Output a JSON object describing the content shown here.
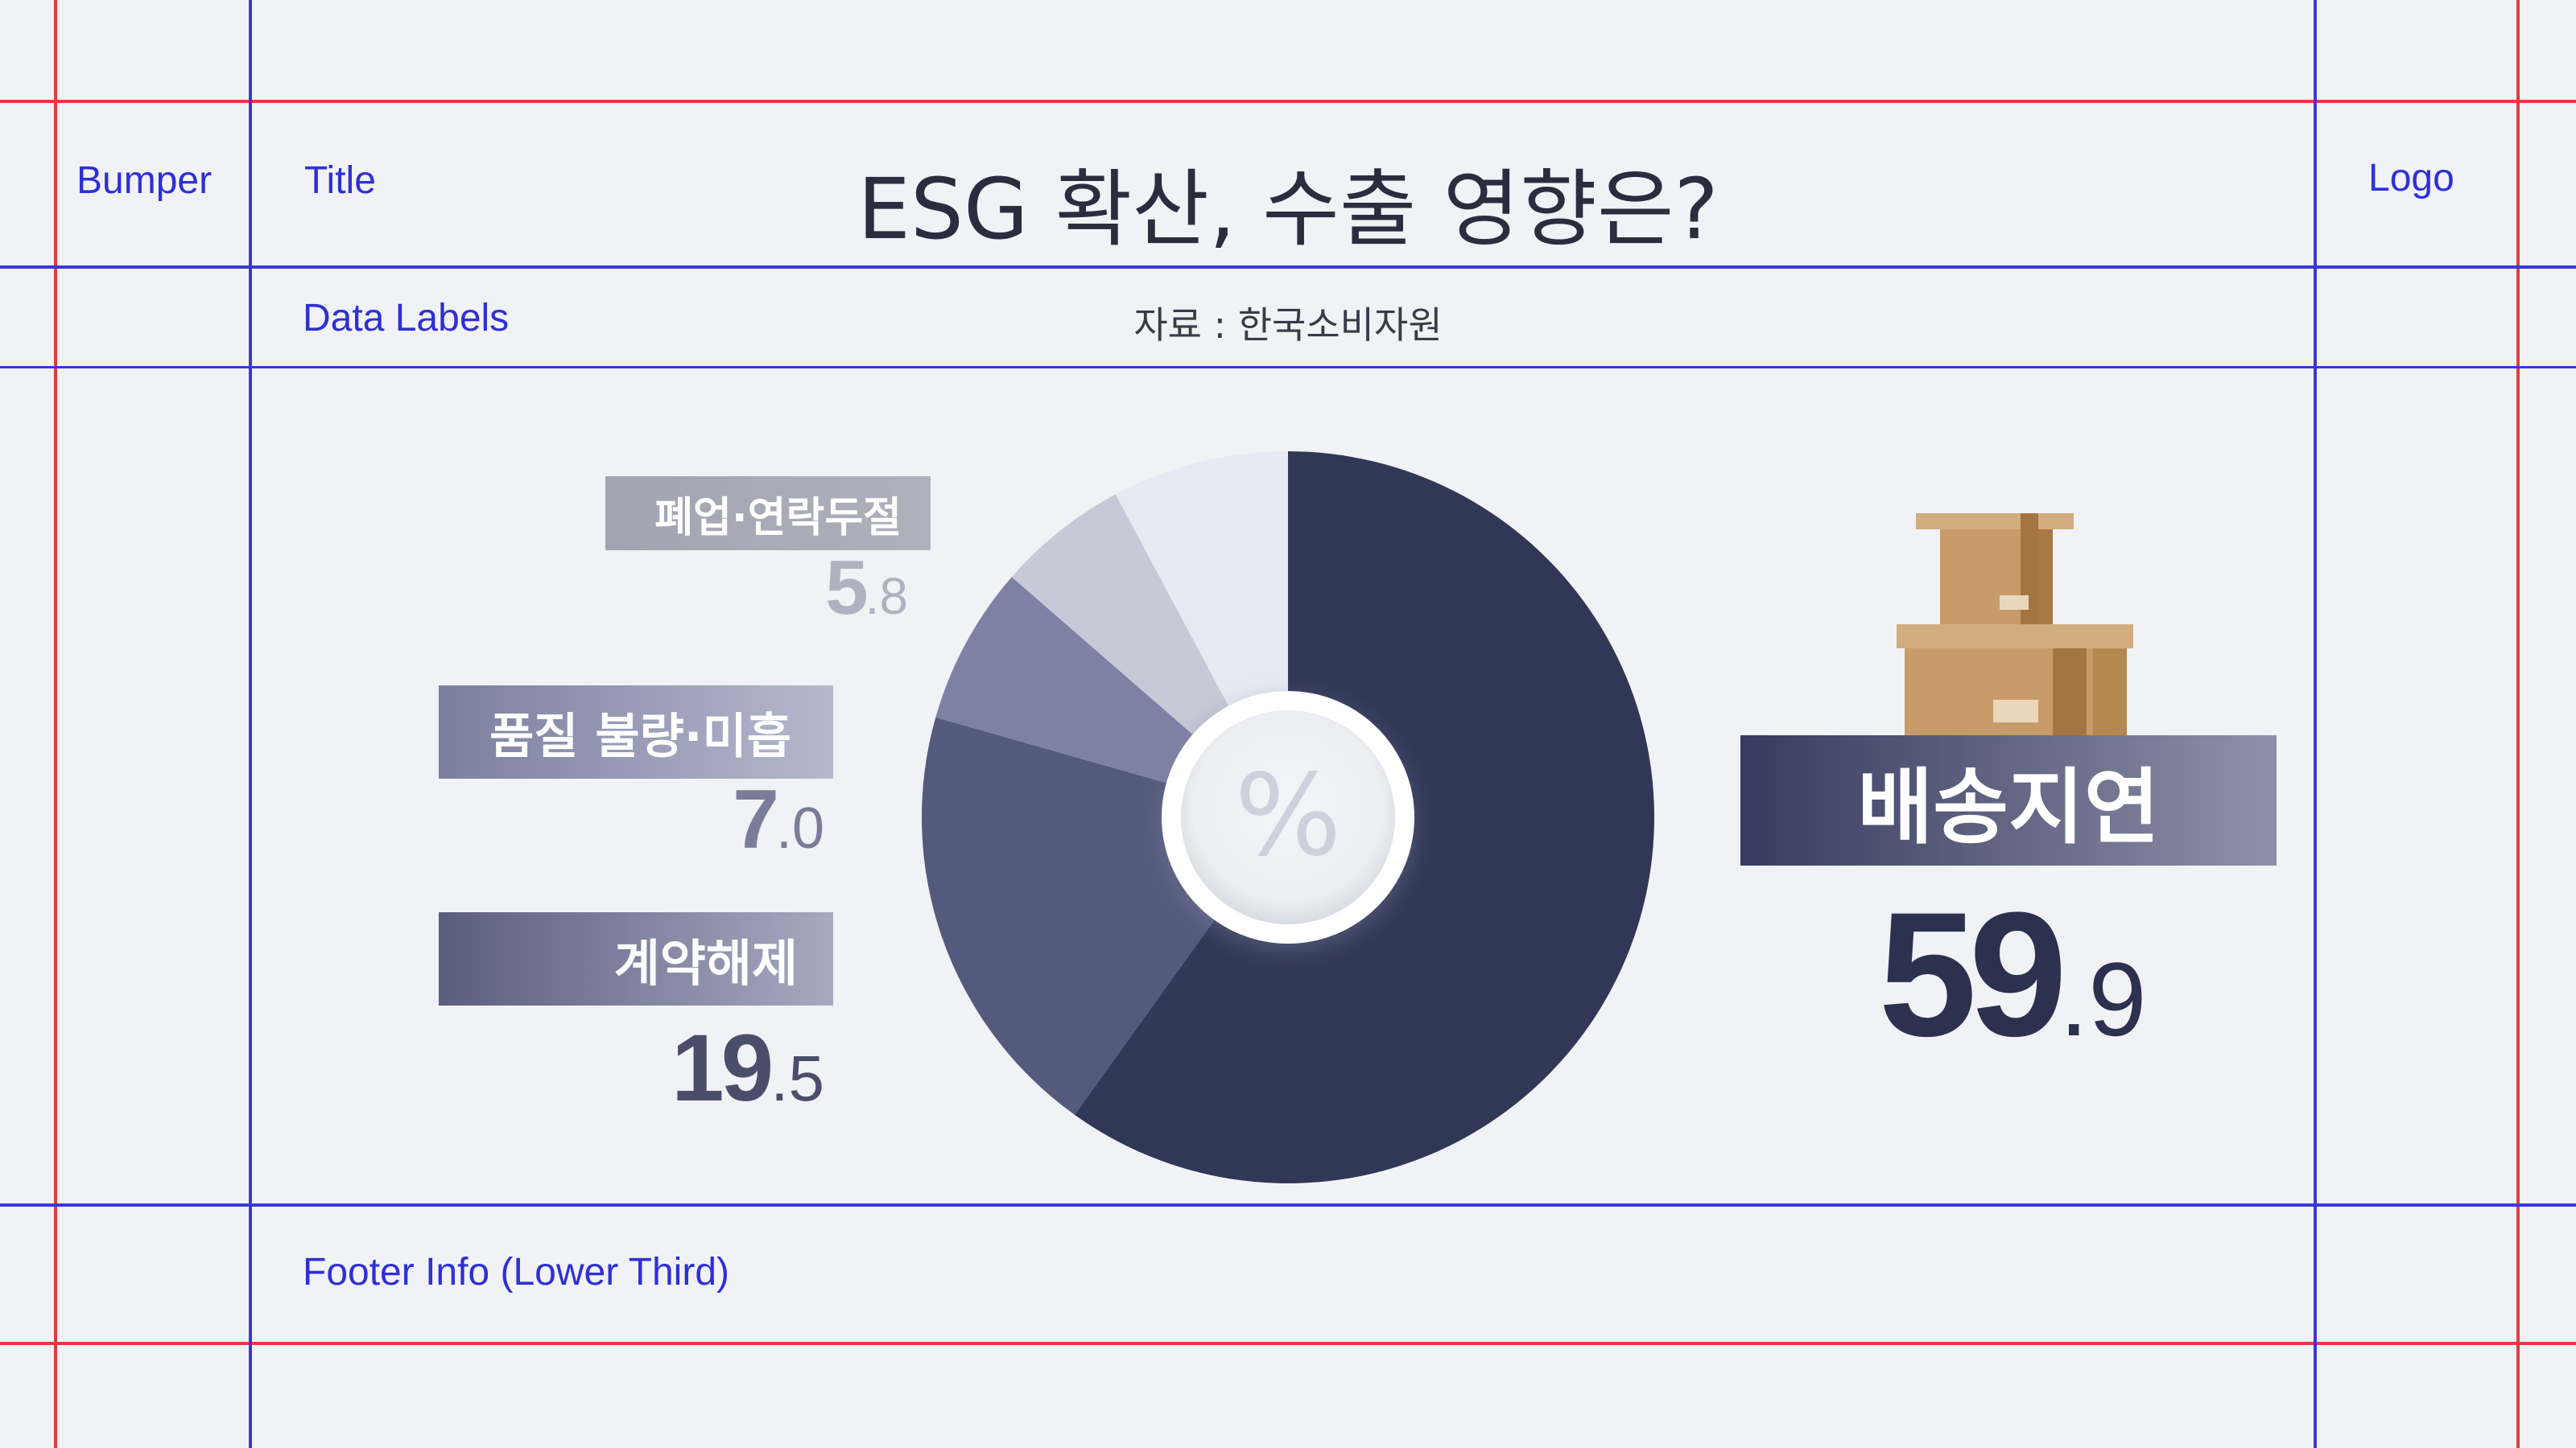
{
  "guides": {
    "bumper": "Bumper",
    "title": "Title",
    "logo": "Logo",
    "data_labels": "Data Labels",
    "footer": "Footer Info (Lower Third)"
  },
  "header": {
    "title": "ESG 확산, 수출 영향은?",
    "source": "자료 : 한국소비자원"
  },
  "center_symbol": "%",
  "illustration": "cardboard-boxes-icon",
  "chart_data": {
    "type": "pie",
    "title": "",
    "unit": "%",
    "categories": [
      "배송지연",
      "계약해제",
      "품질 불량·미흡",
      "폐업·연락두절",
      ""
    ],
    "values": [
      59.9,
      19.5,
      7.0,
      5.8,
      7.8
    ],
    "colors": [
      "#313756",
      "#545a7c",
      "#7d82a5",
      "#c8c9d6",
      "#e8e9f2"
    ],
    "labels": {
      "delay": {
        "name": "배송지연",
        "int": "59",
        "dec": ".9"
      },
      "contract": {
        "name": "계약해제",
        "int": "19",
        "dec": ".5"
      },
      "quality": {
        "name": "품질 불량·미흡",
        "int": "7",
        "dec": ".0"
      },
      "closure": {
        "name": "폐업·연락두절",
        "int": "5",
        "dec": ".8"
      }
    }
  }
}
